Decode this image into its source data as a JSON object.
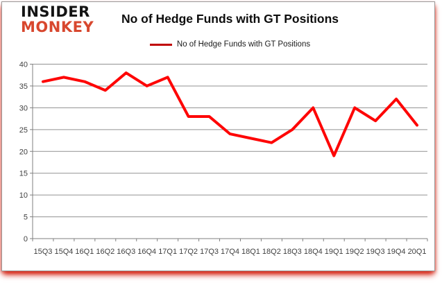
{
  "logo": {
    "line1": "INSIDER",
    "line2": "MONKEY"
  },
  "chart_data": {
    "type": "line",
    "title": "No of Hedge Funds with GT Positions",
    "legend_entries": [
      "No of Hedge Funds with GT Positions"
    ],
    "legend_position": "top-center",
    "categories": [
      "15Q3",
      "15Q4",
      "16Q1",
      "16Q2",
      "16Q3",
      "16Q4",
      "17Q1",
      "17Q2",
      "17Q3",
      "17Q4",
      "18Q1",
      "18Q2",
      "18Q3",
      "18Q4",
      "19Q1",
      "19Q2",
      "19Q3",
      "19Q4",
      "20Q1"
    ],
    "series": [
      {
        "name": "No of Hedge Funds with GT Positions",
        "values": [
          36,
          37,
          36,
          34,
          38,
          35,
          37,
          28,
          28,
          24,
          23,
          22,
          25,
          30,
          19,
          30,
          27,
          32,
          26
        ],
        "color": "#fe0505"
      }
    ],
    "xlabel": "",
    "ylabel": "",
    "ylim": [
      0,
      40
    ],
    "ytick_step": 5,
    "yticks": [
      0,
      5,
      10,
      15,
      20,
      25,
      30,
      35,
      40
    ],
    "grid": true,
    "legend_marker_color": "#c00000",
    "line_width": 4
  },
  "colors": {
    "gridline": "#919191",
    "axis": "#7f7f7f",
    "axis_text": "#3f3f3f",
    "title_text": "#0d0d0d",
    "legend_text": "#1a1a1a",
    "logo_insider": "#141414",
    "logo_monkey": "#d8472e",
    "card_shadow_red": "#d32010"
  }
}
